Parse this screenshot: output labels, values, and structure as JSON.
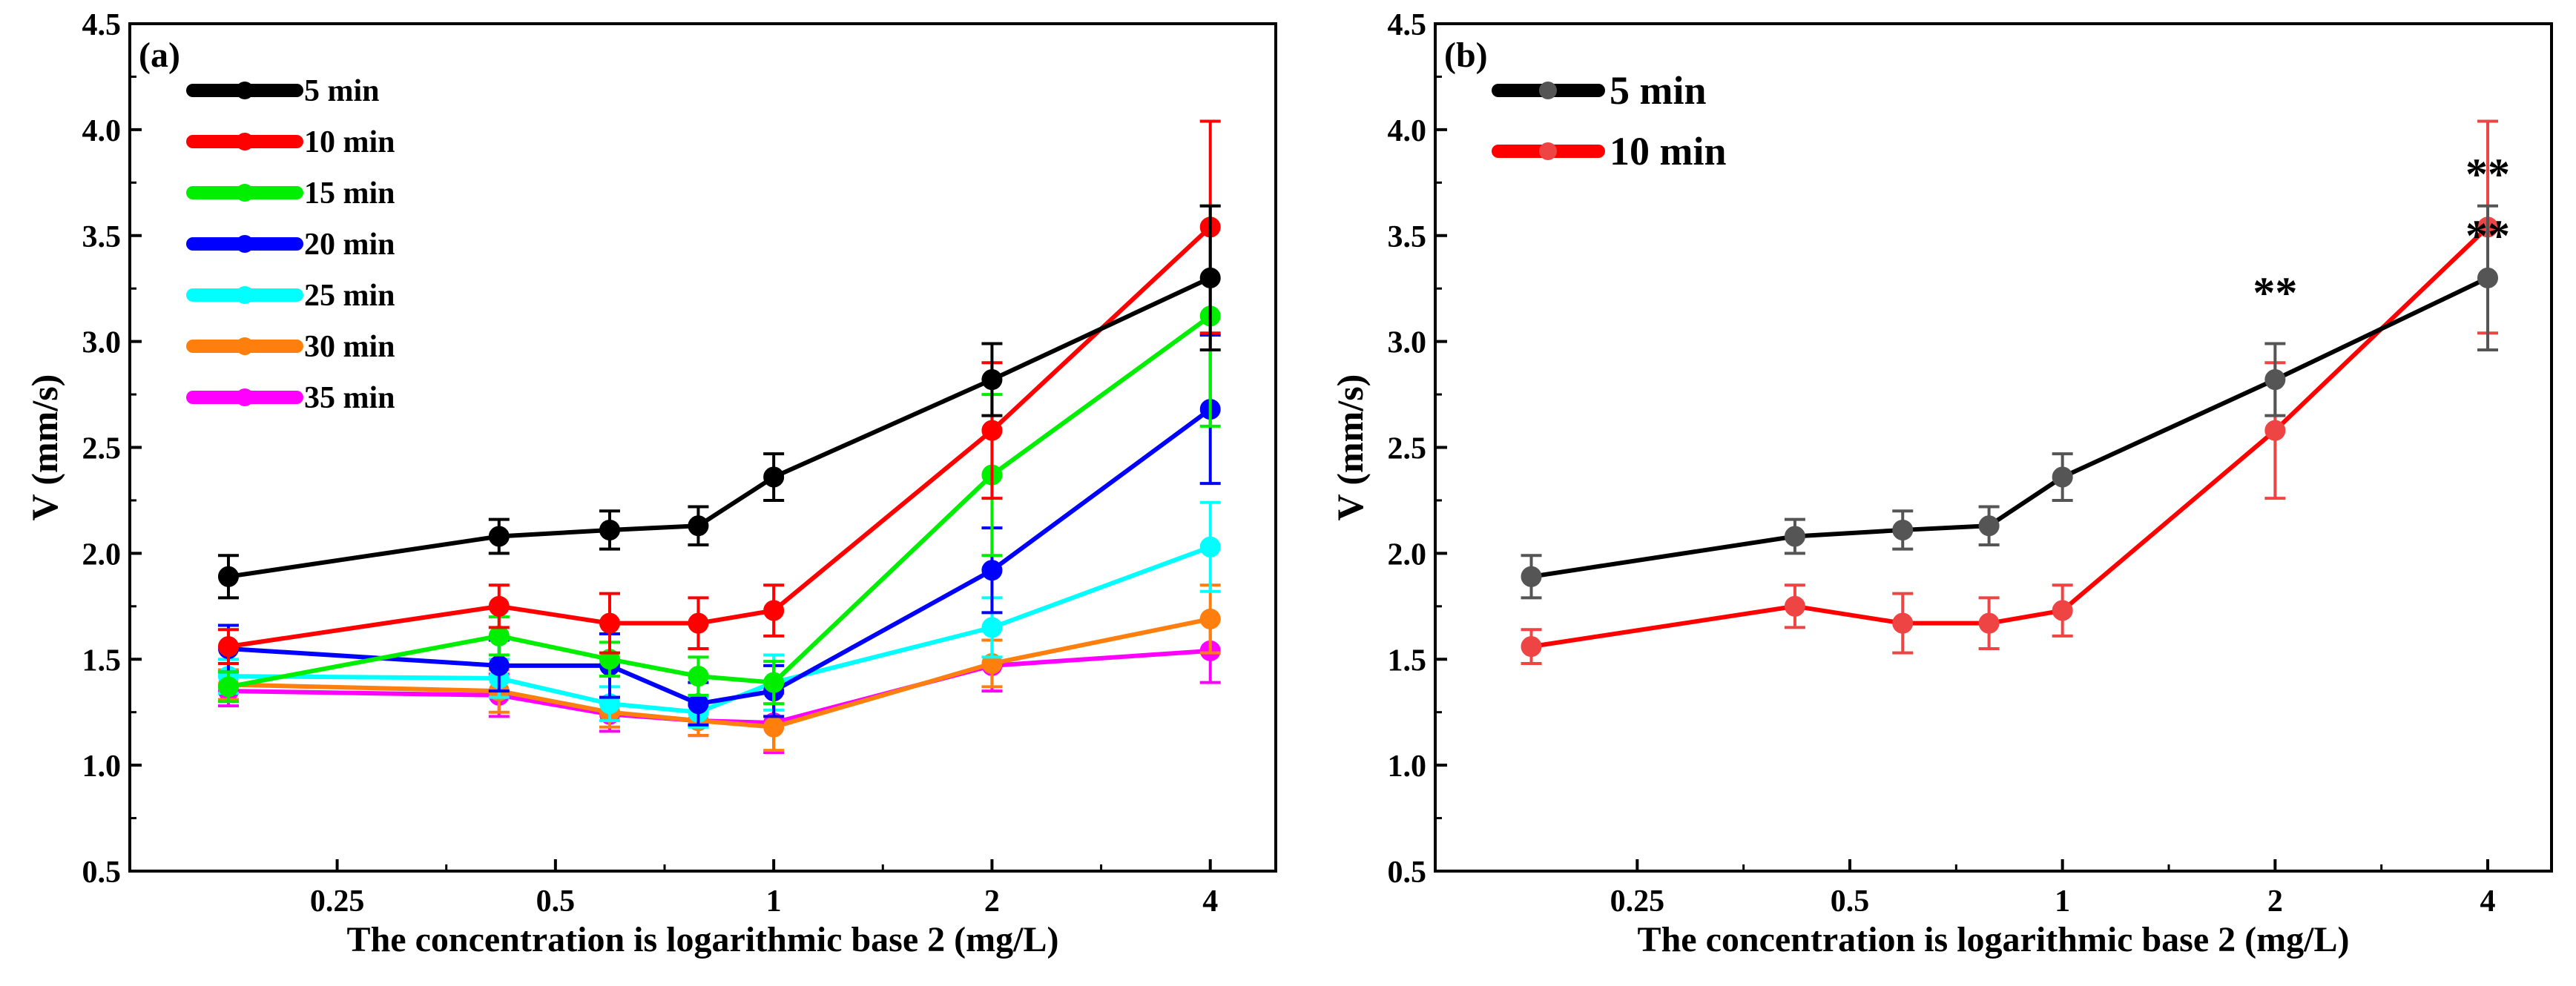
{
  "chart_data": [
    {
      "type": "line",
      "panel_label": "(a)",
      "xlabel": "The concentration is logarithmic base 2 (mg/L)",
      "ylabel": "V (mm/s)",
      "x_scale": "log2",
      "ylim": [
        0.5,
        4.5
      ],
      "xlim_log2": [
        -2.95,
        2.3
      ],
      "x_ticks": [
        0.25,
        0.5,
        1,
        2,
        4
      ],
      "x_tick_labels": [
        "0.25",
        "0.5",
        "1",
        "2",
        "4"
      ],
      "y_ticks": [
        0.5,
        1.0,
        1.5,
        2.0,
        2.5,
        3.0,
        3.5,
        4.0,
        4.5
      ],
      "y_tick_labels": [
        "0.5",
        "1.0",
        "1.5",
        "2.0",
        "2.5",
        "3.0",
        "3.5",
        "4.0",
        "4.5"
      ],
      "x": [
        0.177,
        0.418,
        0.594,
        0.787,
        1,
        2,
        4
      ],
      "legend_position": "top-left",
      "annotations": [],
      "series": [
        {
          "name": "5 min",
          "color": "#000000",
          "values": [
            1.89,
            2.08,
            2.11,
            2.13,
            2.36,
            2.82,
            3.3
          ],
          "errors": [
            0.1,
            0.08,
            0.09,
            0.09,
            0.11,
            0.17,
            0.34
          ]
        },
        {
          "name": "10 min",
          "color": "#ff0000",
          "values": [
            1.56,
            1.75,
            1.67,
            1.67,
            1.73,
            2.58,
            3.54
          ],
          "errors": [
            0.08,
            0.1,
            0.14,
            0.12,
            0.12,
            0.32,
            0.5
          ]
        },
        {
          "name": "15 min",
          "color": "#00ee00",
          "values": [
            1.37,
            1.61,
            1.5,
            1.42,
            1.39,
            2.37,
            3.12
          ],
          "errors": [
            0.07,
            0.09,
            0.08,
            0.09,
            0.1,
            0.38,
            0.52
          ]
        },
        {
          "name": "20 min",
          "color": "#0000ff",
          "values": [
            1.55,
            1.47,
            1.47,
            1.29,
            1.35,
            1.92,
            2.68
          ],
          "errors": [
            0.11,
            0.12,
            0.15,
            0.1,
            0.12,
            0.2,
            0.35
          ]
        },
        {
          "name": "25 min",
          "color": "#00ffff",
          "values": [
            1.42,
            1.41,
            1.29,
            1.25,
            1.39,
            1.65,
            2.03
          ],
          "errors": [
            0.08,
            0.09,
            0.08,
            0.07,
            0.13,
            0.14,
            0.21
          ]
        },
        {
          "name": "30 min",
          "color": "#ff7f0e",
          "values": [
            1.38,
            1.35,
            1.25,
            1.21,
            1.18,
            1.48,
            1.69
          ],
          "errors": [
            0.07,
            0.1,
            0.07,
            0.07,
            0.11,
            0.11,
            0.16
          ]
        },
        {
          "name": "35 min",
          "color": "#ff00ff",
          "values": [
            1.35,
            1.33,
            1.24,
            1.21,
            1.2,
            1.47,
            1.54
          ],
          "errors": [
            0.07,
            0.1,
            0.08,
            0.07,
            0.14,
            0.12,
            0.15
          ]
        }
      ]
    },
    {
      "type": "line",
      "panel_label": "(b)",
      "xlabel": "The concentration is logarithmic base 2 (mg/L)",
      "ylabel": "V (mm/s)",
      "x_scale": "log2",
      "ylim": [
        0.5,
        4.5
      ],
      "xlim_log2": [
        -2.95,
        2.3
      ],
      "x_ticks": [
        0.25,
        0.5,
        1,
        2,
        4
      ],
      "x_tick_labels": [
        "0.25",
        "0.5",
        "1",
        "2",
        "4"
      ],
      "y_ticks": [
        0.5,
        1.0,
        1.5,
        2.0,
        2.5,
        3.0,
        3.5,
        4.0,
        4.5
      ],
      "y_tick_labels": [
        "0.5",
        "1.0",
        "1.5",
        "2.0",
        "2.5",
        "3.0",
        "3.5",
        "4.0",
        "4.5"
      ],
      "x": [
        0.177,
        0.418,
        0.594,
        0.787,
        1,
        2,
        4
      ],
      "legend_position": "top-left",
      "annotations": [
        {
          "text": "**",
          "x": 2,
          "y": 3.16
        },
        {
          "text": "**",
          "x": 4,
          "y": 3.72
        },
        {
          "text": "**",
          "x": 4,
          "y": 3.43
        }
      ],
      "series": [
        {
          "name": "5 min",
          "color": "#000000",
          "marker_color": "#555555",
          "values": [
            1.89,
            2.08,
            2.11,
            2.13,
            2.36,
            2.82,
            3.3
          ],
          "errors": [
            0.1,
            0.08,
            0.09,
            0.09,
            0.11,
            0.17,
            0.34
          ]
        },
        {
          "name": "10 min",
          "color": "#ff0000",
          "marker_color": "#ee4444",
          "values": [
            1.56,
            1.75,
            1.67,
            1.67,
            1.73,
            2.58,
            3.54
          ],
          "errors": [
            0.08,
            0.1,
            0.14,
            0.12,
            0.12,
            0.32,
            0.5
          ]
        }
      ]
    }
  ]
}
